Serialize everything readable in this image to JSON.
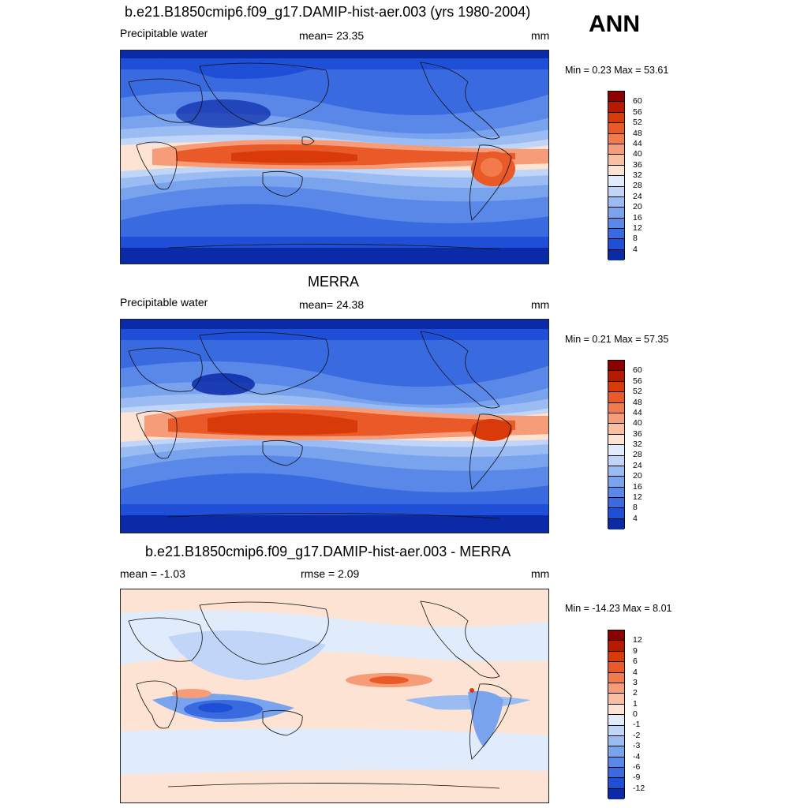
{
  "season": "ANN",
  "panels": [
    {
      "title": "b.e21.B1850cmip6.f09_g17.DAMIP-hist-aer.003 (yrs 1980-2004)",
      "left": "Precipitable water",
      "center": "mean=  23.35",
      "units": "mm",
      "minmax": "Min =   0.23 Max =  53.61"
    },
    {
      "title": "MERRA",
      "left": "Precipitable water",
      "center": "mean=  24.38",
      "units": "mm",
      "minmax": "Min =   0.21 Max =  57.35"
    },
    {
      "title": "b.e21.B1850cmip6.f09_g17.DAMIP-hist-aer.003 - MERRA",
      "left": "mean =  -1.03",
      "center": "rmse =   2.09",
      "units": "mm",
      "minmax": "Min = -14.23 Max =   8.01"
    }
  ],
  "colorbars": {
    "field": {
      "labels": [
        "60",
        "56",
        "52",
        "48",
        "44",
        "40",
        "36",
        "32",
        "28",
        "24",
        "20",
        "16",
        "12",
        "8",
        "4"
      ],
      "colors": [
        "#8c0000",
        "#b81a00",
        "#d93a0a",
        "#ea5a28",
        "#f27b4e",
        "#f69c78",
        "#f9bfa3",
        "#fde3d3",
        "#e0ecfb",
        "#c0d5f7",
        "#9bbcf3",
        "#7aa3ee",
        "#5a88e8",
        "#3a6ae0",
        "#1f4fd6",
        "#0a2aa8"
      ]
    },
    "diff": {
      "labels": [
        "12",
        "9",
        "6",
        "4",
        "3",
        "2",
        "1",
        "0",
        "-1",
        "-2",
        "-3",
        "-4",
        "-6",
        "-9",
        "-12"
      ],
      "colors": [
        "#8c0000",
        "#b81a00",
        "#d93a0a",
        "#ea5a28",
        "#f27b4e",
        "#f69c78",
        "#f9bfa3",
        "#fde3d3",
        "#e0ecfb",
        "#c0d5f7",
        "#9bbcf3",
        "#7aa3ee",
        "#5a88e8",
        "#3a6ae0",
        "#1f4fd6",
        "#0a2aa8"
      ]
    }
  }
}
